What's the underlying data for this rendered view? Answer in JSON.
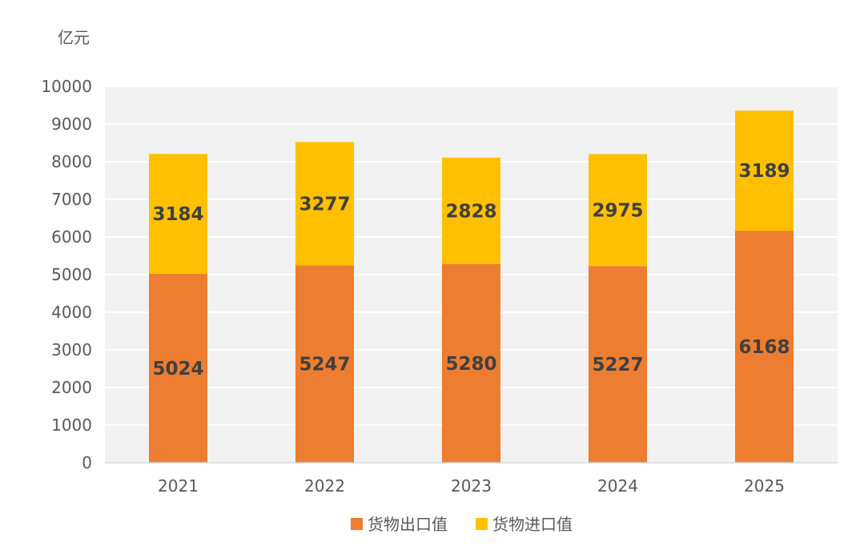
{
  "chart_data": {
    "type": "bar",
    "stacked": true,
    "title": "",
    "unit_label": "亿元",
    "xlabel": "",
    "ylabel": "",
    "categories": [
      "2021",
      "2022",
      "2023",
      "2024",
      "2025"
    ],
    "series": [
      {
        "name": "货物出口值",
        "values": [
          5024,
          5247,
          5280,
          5227,
          6168
        ],
        "color": "#ED7D31"
      },
      {
        "name": "货物进口值",
        "values": [
          3184,
          3277,
          2828,
          2975,
          3189
        ],
        "color": "#FFC000"
      }
    ],
    "ylim": [
      0,
      10000
    ],
    "yticks": [
      0,
      1000,
      2000,
      3000,
      4000,
      5000,
      6000,
      7000,
      8000,
      9000,
      10000
    ],
    "grid": true,
    "plot_background": "#F2F2F2",
    "legend_position": "bottom"
  }
}
